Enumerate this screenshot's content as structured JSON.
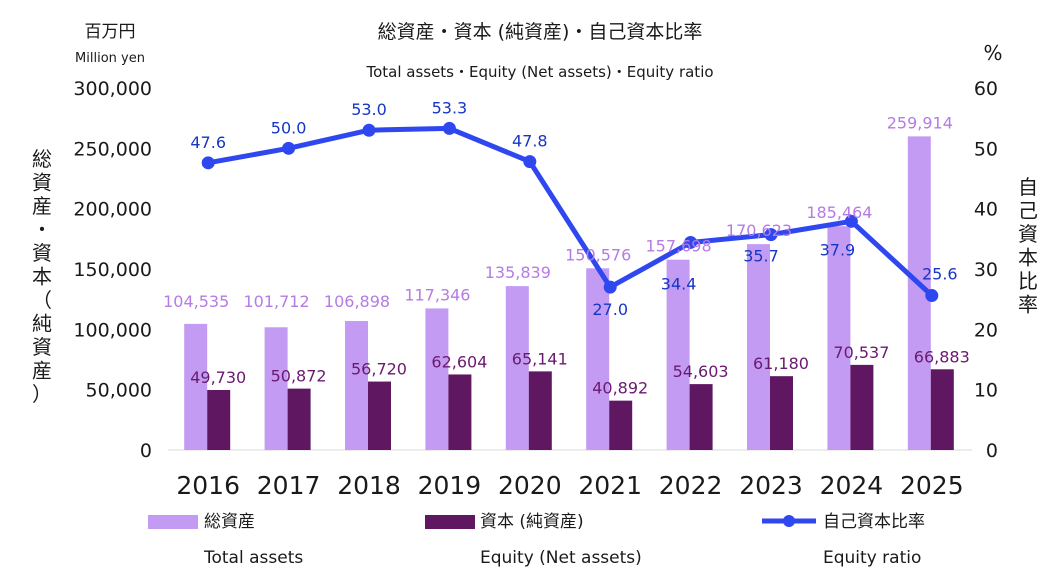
{
  "chart_data": {
    "type": "bar",
    "title": "総資産・資本 (純資産)・自己資本比率",
    "subtitle": "Total assets・Equity (Net assets)・Equity ratio",
    "left_axis": {
      "unit": "百万円",
      "unit_en": "Million yen",
      "label": "総資産・資本（純資産）",
      "ylim": [
        0,
        300000
      ],
      "ticks": [
        "0",
        "50,000",
        "100,000",
        "150,000",
        "200,000",
        "250,000",
        "300,000"
      ]
    },
    "right_axis": {
      "unit": "%",
      "label": "自己資本比率",
      "ylim": [
        0,
        60
      ],
      "ticks": [
        "0",
        "10",
        "20",
        "30",
        "40",
        "50",
        "60"
      ]
    },
    "categories": [
      "2016",
      "2017",
      "2018",
      "2019",
      "2020",
      "2021",
      "2022",
      "2023",
      "2024",
      "2025"
    ],
    "series": [
      {
        "name": "総資産",
        "name_en": "Total assets",
        "type": "bar",
        "axis": "left",
        "color": "#c39bf3",
        "values": [
          104535,
          101712,
          106898,
          117346,
          135839,
          150576,
          157698,
          170623,
          185464,
          259914
        ],
        "labels": [
          "104,535",
          "101,712",
          "106,898",
          "117,346",
          "135,839",
          "150,576",
          "157,698",
          "170,623",
          "185,464",
          "259,914"
        ]
      },
      {
        "name": "資本 (純資産)",
        "name_en": "Equity (Net assets)",
        "type": "bar",
        "axis": "left",
        "color": "#5e1760",
        "values": [
          49730,
          50872,
          56720,
          62604,
          65141,
          40892,
          54603,
          61180,
          70537,
          66883
        ],
        "labels": [
          "49,730",
          "50,872",
          "56,720",
          "62,604",
          "65,141",
          "40,892",
          "54,603",
          "61,180",
          "70,537",
          "66,883"
        ]
      },
      {
        "name": "自己資本比率",
        "name_en": "Equity ratio",
        "type": "line",
        "axis": "right",
        "color": "#2f47ef",
        "values": [
          47.6,
          50.0,
          53.0,
          53.3,
          47.8,
          27.0,
          34.4,
          35.7,
          37.9,
          25.6
        ],
        "labels": [
          "47.6",
          "50.0",
          "53.0",
          "53.3",
          "47.8",
          "27.0",
          "34.4",
          "35.7",
          "37.9",
          "25.6"
        ]
      }
    ],
    "legend_position": "bottom",
    "grid": false,
    "label_colors": {
      "total_assets": "#b57be6",
      "equity": "#6a1a6e",
      "ratio": "#1636c6"
    }
  }
}
